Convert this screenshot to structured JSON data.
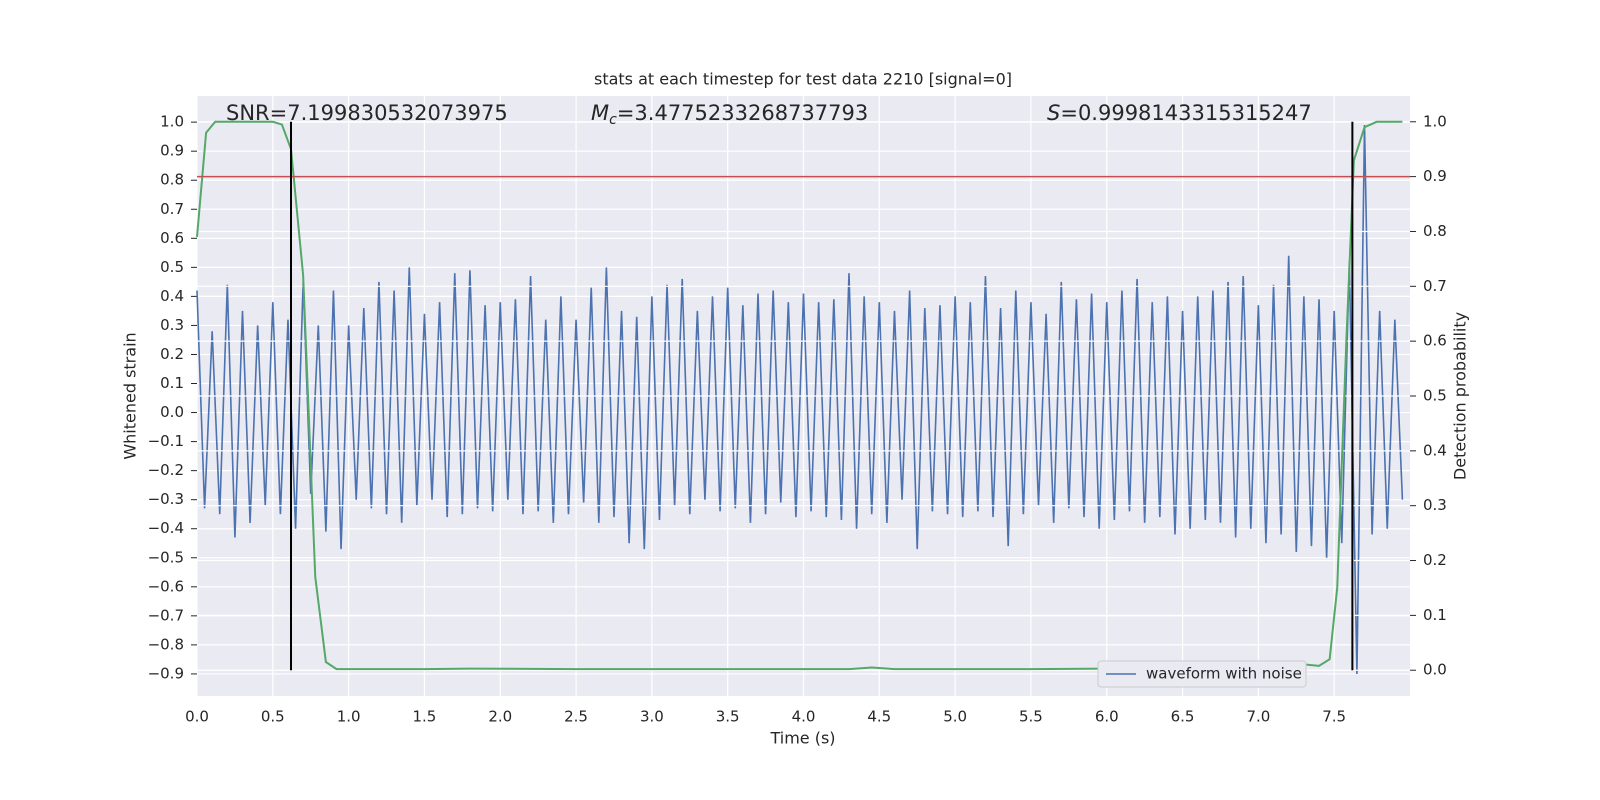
{
  "chart_data": {
    "type": "line",
    "title": "stats at each timestep for test data 2210 [signal=0]",
    "xlabel": "Time (s)",
    "ylabel": "Whitened strain",
    "y2label": "Detection probability",
    "annotations": [
      {
        "text": "SNR=7.199830532073975"
      },
      {
        "symbol": "M",
        "subscript": "c",
        "text": "=3.4775233268737793"
      },
      {
        "symbol": "S",
        "text": "=0.9998143315315247"
      }
    ],
    "xlim": [
      0,
      8.0
    ],
    "ylim": [
      -0.976,
      1.09
    ],
    "y2lim": [
      -0.047,
      1.047
    ],
    "xticks": [
      {
        "value": 0,
        "label": "0.0"
      },
      0.5,
      {
        "value": 1,
        "label": "1.0"
      },
      1.5,
      {
        "value": 2,
        "label": "2.0"
      },
      2.5,
      {
        "value": 3,
        "label": "3.0"
      },
      3.5,
      {
        "value": 4,
        "label": "4.0"
      },
      4.5,
      {
        "value": 5,
        "label": "5.0"
      },
      5.5,
      {
        "value": 6,
        "label": "6.0"
      },
      6.5,
      {
        "value": 7,
        "label": "7.0"
      },
      7.5
    ],
    "yticks": [
      {
        "value": -0.9,
        "label": "−0.9"
      },
      {
        "value": -0.8,
        "label": "−0.8"
      },
      {
        "value": -0.7,
        "label": "−0.7"
      },
      {
        "value": -0.6,
        "label": "−0.6"
      },
      {
        "value": -0.5,
        "label": "−0.5"
      },
      {
        "value": -0.4,
        "label": "−0.4"
      },
      {
        "value": -0.3,
        "label": "−0.3"
      },
      {
        "value": -0.2,
        "label": "−0.2"
      },
      {
        "value": -0.1,
        "label": "−0.1"
      },
      {
        "value": 0,
        "label": "0.0"
      },
      0.1,
      0.2,
      0.3,
      0.4,
      0.5,
      0.6,
      0.7,
      0.8,
      0.9,
      {
        "value": 1,
        "label": "1.0"
      }
    ],
    "y2ticks": [
      {
        "value": 0,
        "label": "0.0"
      },
      0.1,
      0.2,
      0.3,
      0.4,
      0.5,
      0.6,
      0.7,
      0.8,
      0.9,
      {
        "value": 1,
        "label": "1.0"
      }
    ],
    "grid": true,
    "legend": "lower right",
    "series": [
      {
        "name": "waveform with noise",
        "color": "#4c72b0",
        "x": [
          0,
          0.05,
          0.1,
          0.15,
          0.2,
          0.25,
          0.3,
          0.35,
          0.4,
          0.45,
          0.5,
          0.55,
          0.6,
          0.65,
          0.7,
          0.75,
          0.8,
          0.85,
          0.9,
          0.95,
          1,
          1.05,
          1.1,
          1.15,
          1.2,
          1.25,
          1.3,
          1.35,
          1.4,
          1.45,
          1.5,
          1.55,
          1.6,
          1.65,
          1.7,
          1.75,
          1.8,
          1.85,
          1.9,
          1.95,
          2,
          2.05,
          2.1,
          2.15,
          2.2,
          2.25,
          2.3,
          2.35,
          2.4,
          2.45,
          2.5,
          2.55,
          2.6,
          2.65,
          2.7,
          2.75,
          2.8,
          2.85,
          2.9,
          2.95,
          3,
          3.05,
          3.1,
          3.15,
          3.2,
          3.25,
          3.3,
          3.35,
          3.4,
          3.45,
          3.5,
          3.55,
          3.6,
          3.65,
          3.7,
          3.75,
          3.8,
          3.85,
          3.9,
          3.95,
          4,
          4.05,
          4.1,
          4.15,
          4.2,
          4.25,
          4.3,
          4.35,
          4.4,
          4.45,
          4.5,
          4.55,
          4.6,
          4.65,
          4.7,
          4.75,
          4.8,
          4.85,
          4.9,
          4.95,
          5,
          5.05,
          5.1,
          5.15,
          5.2,
          5.25,
          5.3,
          5.35,
          5.4,
          5.45,
          5.5,
          5.55,
          5.6,
          5.65,
          5.7,
          5.75,
          5.8,
          5.85,
          5.9,
          5.95,
          6,
          6.05,
          6.1,
          6.15,
          6.2,
          6.25,
          6.3,
          6.35,
          6.4,
          6.45,
          6.5,
          6.55,
          6.6,
          6.65,
          6.7,
          6.75,
          6.8,
          6.85,
          6.9,
          6.95,
          7,
          7.05,
          7.1,
          7.15,
          7.2,
          7.25,
          7.3,
          7.35,
          7.4,
          7.45,
          7.5,
          7.55,
          7.6,
          7.65,
          7.7,
          7.75,
          7.8,
          7.85,
          7.9,
          7.95
        ],
        "values": [
          0.42,
          -0.33,
          0.28,
          -0.35,
          0.44,
          -0.43,
          0.35,
          -0.38,
          0.3,
          -0.32,
          0.38,
          -0.35,
          0.32,
          -0.4,
          0.45,
          -0.28,
          0.3,
          -0.41,
          0.42,
          -0.47,
          0.3,
          -0.3,
          0.36,
          -0.33,
          0.45,
          -0.35,
          0.42,
          -0.38,
          0.5,
          -0.32,
          0.34,
          -0.3,
          0.38,
          -0.36,
          0.48,
          -0.35,
          0.49,
          -0.33,
          0.37,
          -0.34,
          0.38,
          -0.3,
          0.39,
          -0.35,
          0.47,
          -0.34,
          0.32,
          -0.38,
          0.4,
          -0.35,
          0.32,
          -0.31,
          0.43,
          -0.38,
          0.5,
          -0.36,
          0.35,
          -0.45,
          0.33,
          -0.47,
          0.4,
          -0.37,
          0.44,
          -0.32,
          0.46,
          -0.35,
          0.35,
          -0.3,
          0.4,
          -0.34,
          0.43,
          -0.33,
          0.37,
          -0.38,
          0.41,
          -0.35,
          0.42,
          -0.31,
          0.38,
          -0.36,
          0.41,
          -0.34,
          0.38,
          -0.36,
          0.39,
          -0.37,
          0.48,
          -0.4,
          0.4,
          -0.35,
          0.38,
          -0.38,
          0.35,
          -0.3,
          0.42,
          -0.47,
          0.36,
          -0.34,
          0.37,
          -0.35,
          0.4,
          -0.36,
          0.38,
          -0.34,
          0.47,
          -0.36,
          0.36,
          -0.46,
          0.42,
          -0.35,
          0.38,
          -0.32,
          0.34,
          -0.38,
          0.45,
          -0.33,
          0.39,
          -0.36,
          0.41,
          -0.4,
          0.38,
          -0.37,
          0.42,
          -0.34,
          0.46,
          -0.38,
          0.38,
          -0.36,
          0.4,
          -0.42,
          0.35,
          -0.4,
          0.4,
          -0.37,
          0.42,
          -0.38,
          0.45,
          -0.43,
          0.47,
          -0.4,
          0.37,
          -0.45,
          0.44,
          -0.42,
          0.54,
          -0.48,
          0.4,
          -0.46,
          0.39,
          -0.5,
          0.35,
          -0.45,
          0.52,
          -0.9,
          0.99,
          -0.42,
          0.35,
          -0.4,
          0.32,
          -0.3
        ]
      },
      {
        "color": "#55a868",
        "axis": "y2",
        "x": [
          0,
          0.06,
          0.12,
          0.5,
          0.56,
          0.62,
          0.7,
          0.78,
          0.85,
          0.92,
          1.5,
          1.8,
          2.5,
          3.0,
          3.5,
          4.3,
          4.45,
          4.6,
          5.5,
          6.0,
          6.5,
          6.95,
          7.05,
          7.25,
          7.4,
          7.47,
          7.52,
          7.58,
          7.63,
          7.7,
          7.78,
          7.95
        ],
        "values": [
          0.79,
          0.98,
          1.0,
          1.0,
          0.995,
          0.95,
          0.72,
          0.17,
          0.015,
          0.002,
          0.002,
          0.003,
          0.002,
          0.002,
          0.002,
          0.002,
          0.005,
          0.002,
          0.002,
          0.003,
          0.003,
          0.013,
          0.008,
          0.012,
          0.008,
          0.02,
          0.15,
          0.6,
          0.93,
          0.99,
          1.0,
          1.0
        ]
      }
    ],
    "hlines": [
      {
        "value": 0.9,
        "axis": "y2",
        "color": "#c44e52"
      }
    ],
    "vlines": [
      {
        "x": 0.62,
        "color": "#000000"
      },
      {
        "x": 7.62,
        "color": "#000000"
      }
    ]
  }
}
